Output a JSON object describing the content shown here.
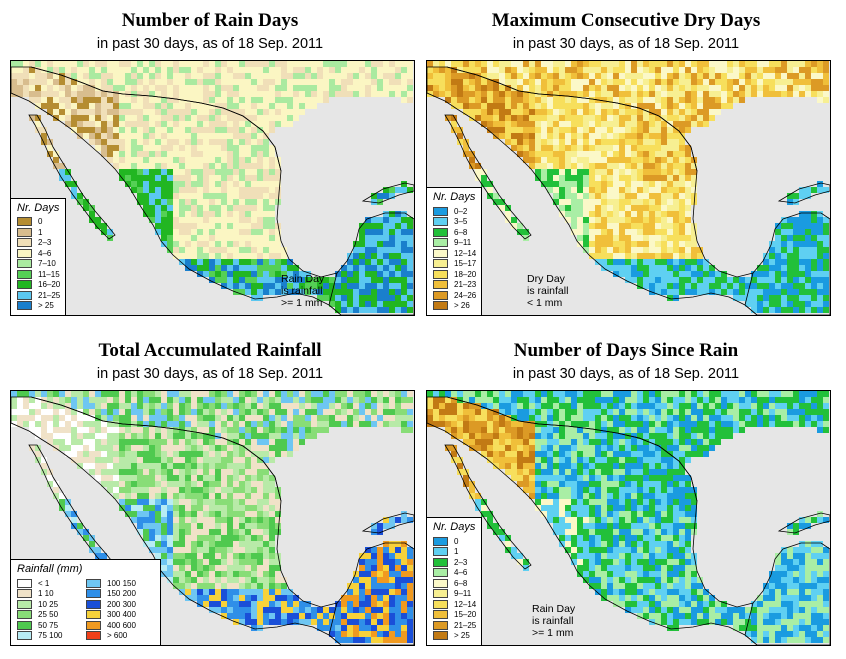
{
  "panels": [
    {
      "id": "rain-days",
      "title": "Number of Rain Days",
      "subtitle": "in past 30 days, as of  18 Sep. 2011",
      "legend_title": "Nr. Days",
      "legend": [
        {
          "label": "0",
          "color": "#b58d32"
        },
        {
          "label": "1",
          "color": "#d8bd8e"
        },
        {
          "label": "2–3",
          "color": "#f0dfb8"
        },
        {
          "label": "4–6",
          "color": "#fbf6c3"
        },
        {
          "label": "7–10",
          "color": "#aaeaa0"
        },
        {
          "label": "11–15",
          "color": "#55d055"
        },
        {
          "label": "16–20",
          "color": "#22b622"
        },
        {
          "label": "21–25",
          "color": "#5bc7f0"
        },
        {
          "label": "> 25",
          "color": "#1a7fcc"
        }
      ],
      "note": [
        "Rain Day",
        "is rainfall",
        ">= 1 mm"
      ]
    },
    {
      "id": "dry-days",
      "title": "Maximum Consecutive Dry Days",
      "subtitle": "in past 30 days, as of  18 Sep. 2011",
      "legend_title": "Nr. Days",
      "legend": [
        {
          "label": "0–2",
          "color": "#1a9be0"
        },
        {
          "label": "3–5",
          "color": "#5fd0f2"
        },
        {
          "label": "6–8",
          "color": "#22c03a"
        },
        {
          "label": "9–11",
          "color": "#a9eea5"
        },
        {
          "label": "12–14",
          "color": "#fbf8c8"
        },
        {
          "label": "15–17",
          "color": "#f7ef92"
        },
        {
          "label": "18–20",
          "color": "#f7df5c"
        },
        {
          "label": "21–23",
          "color": "#f0bf3a"
        },
        {
          "label": "24–26",
          "color": "#dc9a25"
        },
        {
          "label": "> 26",
          "color": "#c27a14"
        }
      ],
      "note": [
        "Dry Day",
        "is rainfall",
        "< 1 mm"
      ]
    },
    {
      "id": "total-rainfall",
      "title": "Total Accumulated Rainfall",
      "subtitle": "in past 30 days, as of  18 Sep. 2011",
      "legend_title": "Rainfall (mm)",
      "legend_col1": [
        {
          "label": "< 1",
          "color": "#ffffff"
        },
        {
          "label": "1    10",
          "color": "#f0e2c8"
        },
        {
          "label": "10    25",
          "color": "#b8eaa8"
        },
        {
          "label": "25    50",
          "color": "#88dd77"
        },
        {
          "label": "50    75",
          "color": "#4fc94f"
        },
        {
          "label": "75  100",
          "color": "#b8ecf4"
        }
      ],
      "legend_col2": [
        {
          "label": "100  150",
          "color": "#6ec6f2"
        },
        {
          "label": "150  200",
          "color": "#2f8fe8"
        },
        {
          "label": "200  300",
          "color": "#1a4fd8"
        },
        {
          "label": "300  400",
          "color": "#f7d23a"
        },
        {
          "label": "400  600",
          "color": "#f09a20"
        },
        {
          "label": "> 600",
          "color": "#f0401a"
        }
      ]
    },
    {
      "id": "days-since-rain",
      "title": "Number of Days Since Rain",
      "subtitle": "in past 30 days, as of  18 Sep. 2011",
      "legend_title": "Nr. Days",
      "legend": [
        {
          "label": "0",
          "color": "#1a9be0"
        },
        {
          "label": "1",
          "color": "#5fd0f2"
        },
        {
          "label": "2–3",
          "color": "#22c03a"
        },
        {
          "label": "4–6",
          "color": "#a9eea5"
        },
        {
          "label": "6–8",
          "color": "#fbf8c8"
        },
        {
          "label": "9–11",
          "color": "#f7ef92"
        },
        {
          "label": "12–14",
          "color": "#f7df5c"
        },
        {
          "label": "15–20",
          "color": "#f0bf3a"
        },
        {
          "label": "21–25",
          "color": "#dc9a25"
        },
        {
          "label": "> 25",
          "color": "#c27a14"
        }
      ],
      "note": [
        "Rain Day",
        "is rainfall",
        ">= 1 mm"
      ]
    }
  ],
  "colors": {
    "ocean": "#e6e6e6",
    "outside_land": "#f7f4c4",
    "border": "#000000"
  }
}
